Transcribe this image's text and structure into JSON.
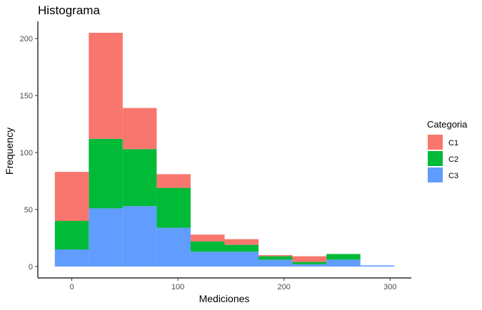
{
  "chart_data": {
    "type": "bar",
    "title": "Histograma",
    "xlabel": "Mediciones",
    "ylabel": "Frequency",
    "stacked": true,
    "bin_width": 32,
    "bin_edges": [
      -16,
      16,
      48,
      80,
      112,
      144,
      176,
      208,
      240,
      272,
      304
    ],
    "xlim": [
      -32,
      320
    ],
    "ylim": [
      -10,
      215
    ],
    "x_ticks": [
      0,
      100,
      200,
      300
    ],
    "y_ticks": [
      0,
      50,
      100,
      150,
      200
    ],
    "grid": false,
    "legend": {
      "title": "Categoria",
      "position": "right"
    },
    "series": [
      {
        "name": "C3",
        "color": "#619CFF",
        "values": [
          15,
          51,
          53,
          34,
          13,
          13,
          6,
          2,
          6,
          1
        ]
      },
      {
        "name": "C2",
        "color": "#00BA38",
        "values": [
          25,
          61,
          50,
          35,
          9,
          6,
          3,
          2,
          5,
          0
        ]
      },
      {
        "name": "C1",
        "color": "#F8766D",
        "values": [
          43,
          93,
          36,
          12,
          6,
          5,
          1,
          5,
          0,
          0
        ]
      }
    ]
  }
}
